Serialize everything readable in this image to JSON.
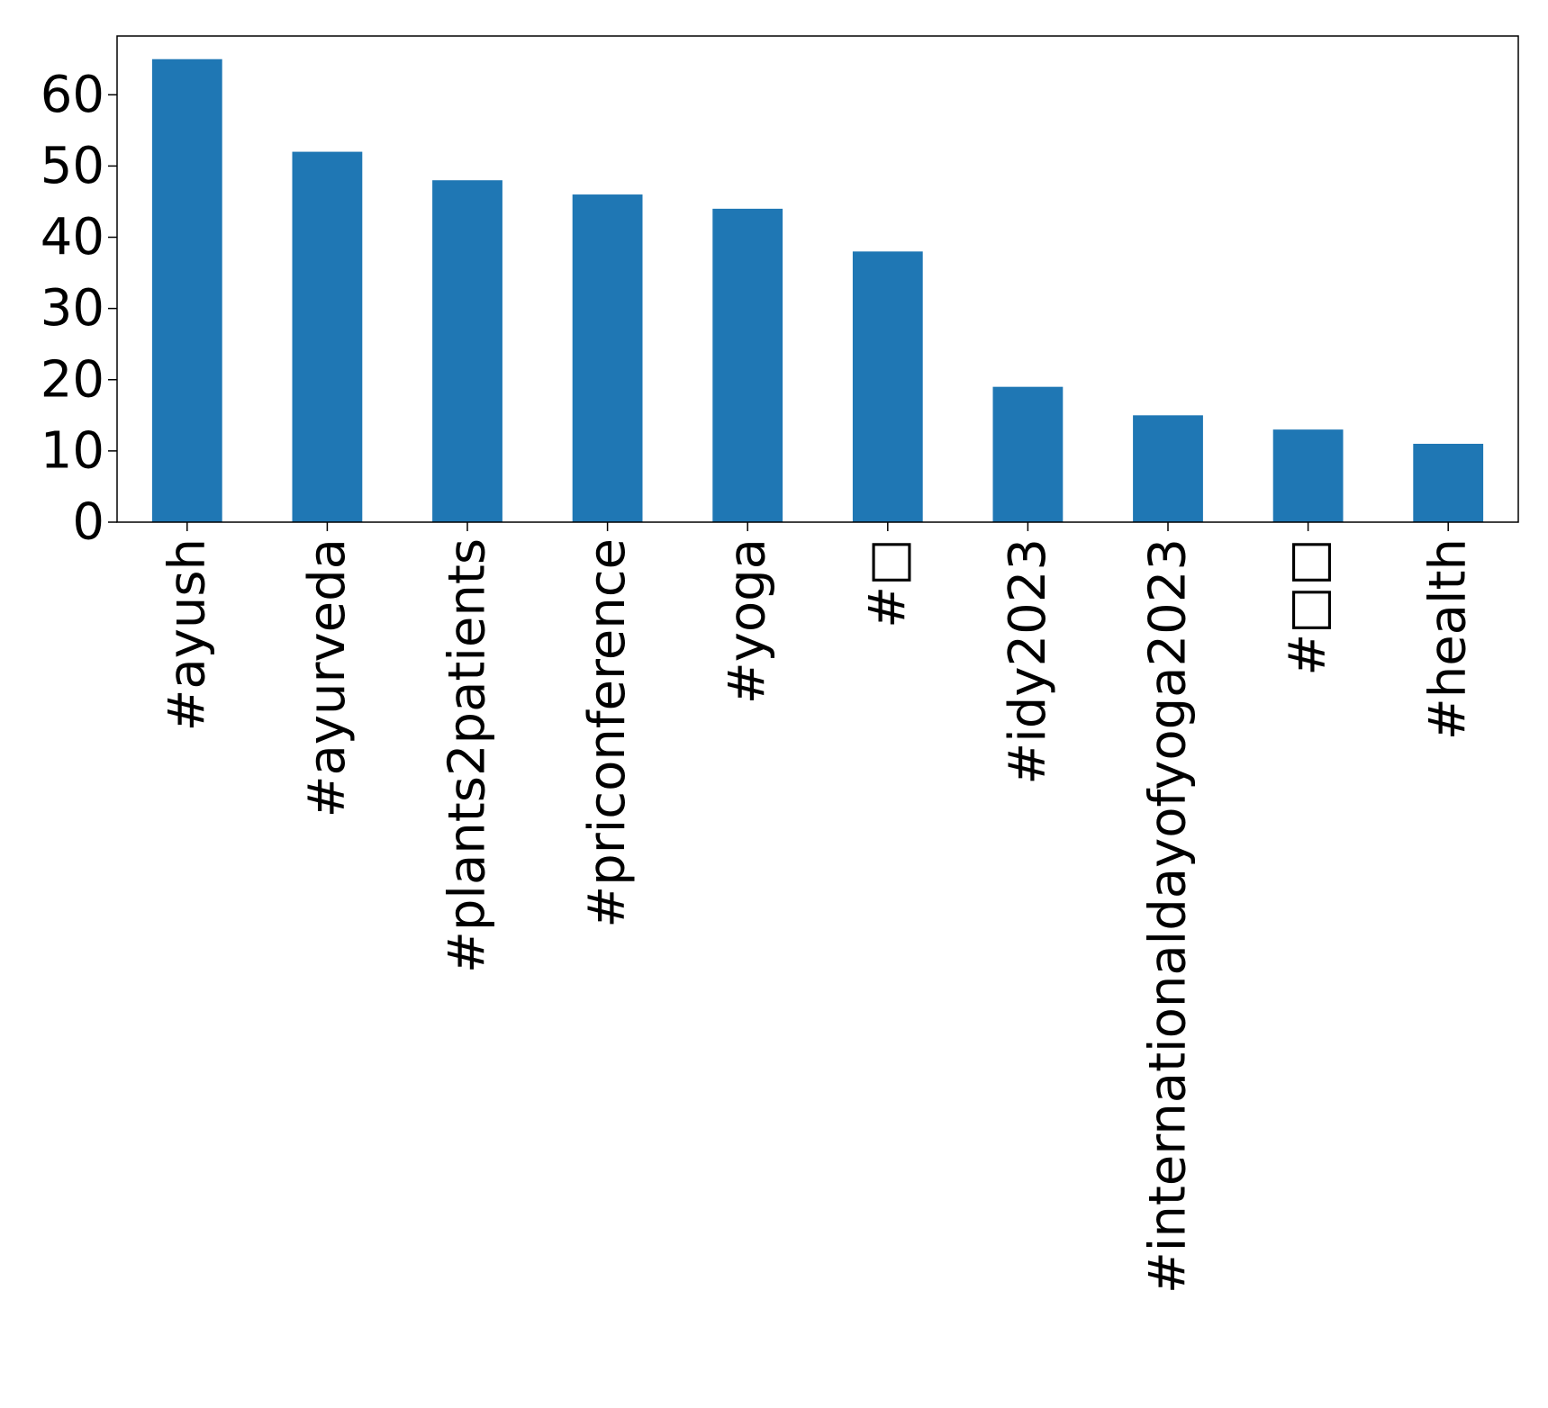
{
  "chart_data": {
    "type": "bar",
    "title": "",
    "xlabel": "",
    "ylabel": "",
    "categories": [
      "#ayush",
      "#ayurveda",
      "#plants2patients",
      "#priconference",
      "#yoga",
      "#□",
      "#idy2023",
      "#internationaldayofyoga2023",
      "#□□",
      "#health"
    ],
    "values": [
      65,
      52,
      48,
      46,
      44,
      38,
      19,
      15,
      13,
      11
    ],
    "ylim": [
      0,
      68.25
    ],
    "yticks": [
      0,
      10,
      20,
      30,
      40,
      50,
      60
    ],
    "bar_color": "#1f77b4",
    "grid": false,
    "legend": "none"
  }
}
